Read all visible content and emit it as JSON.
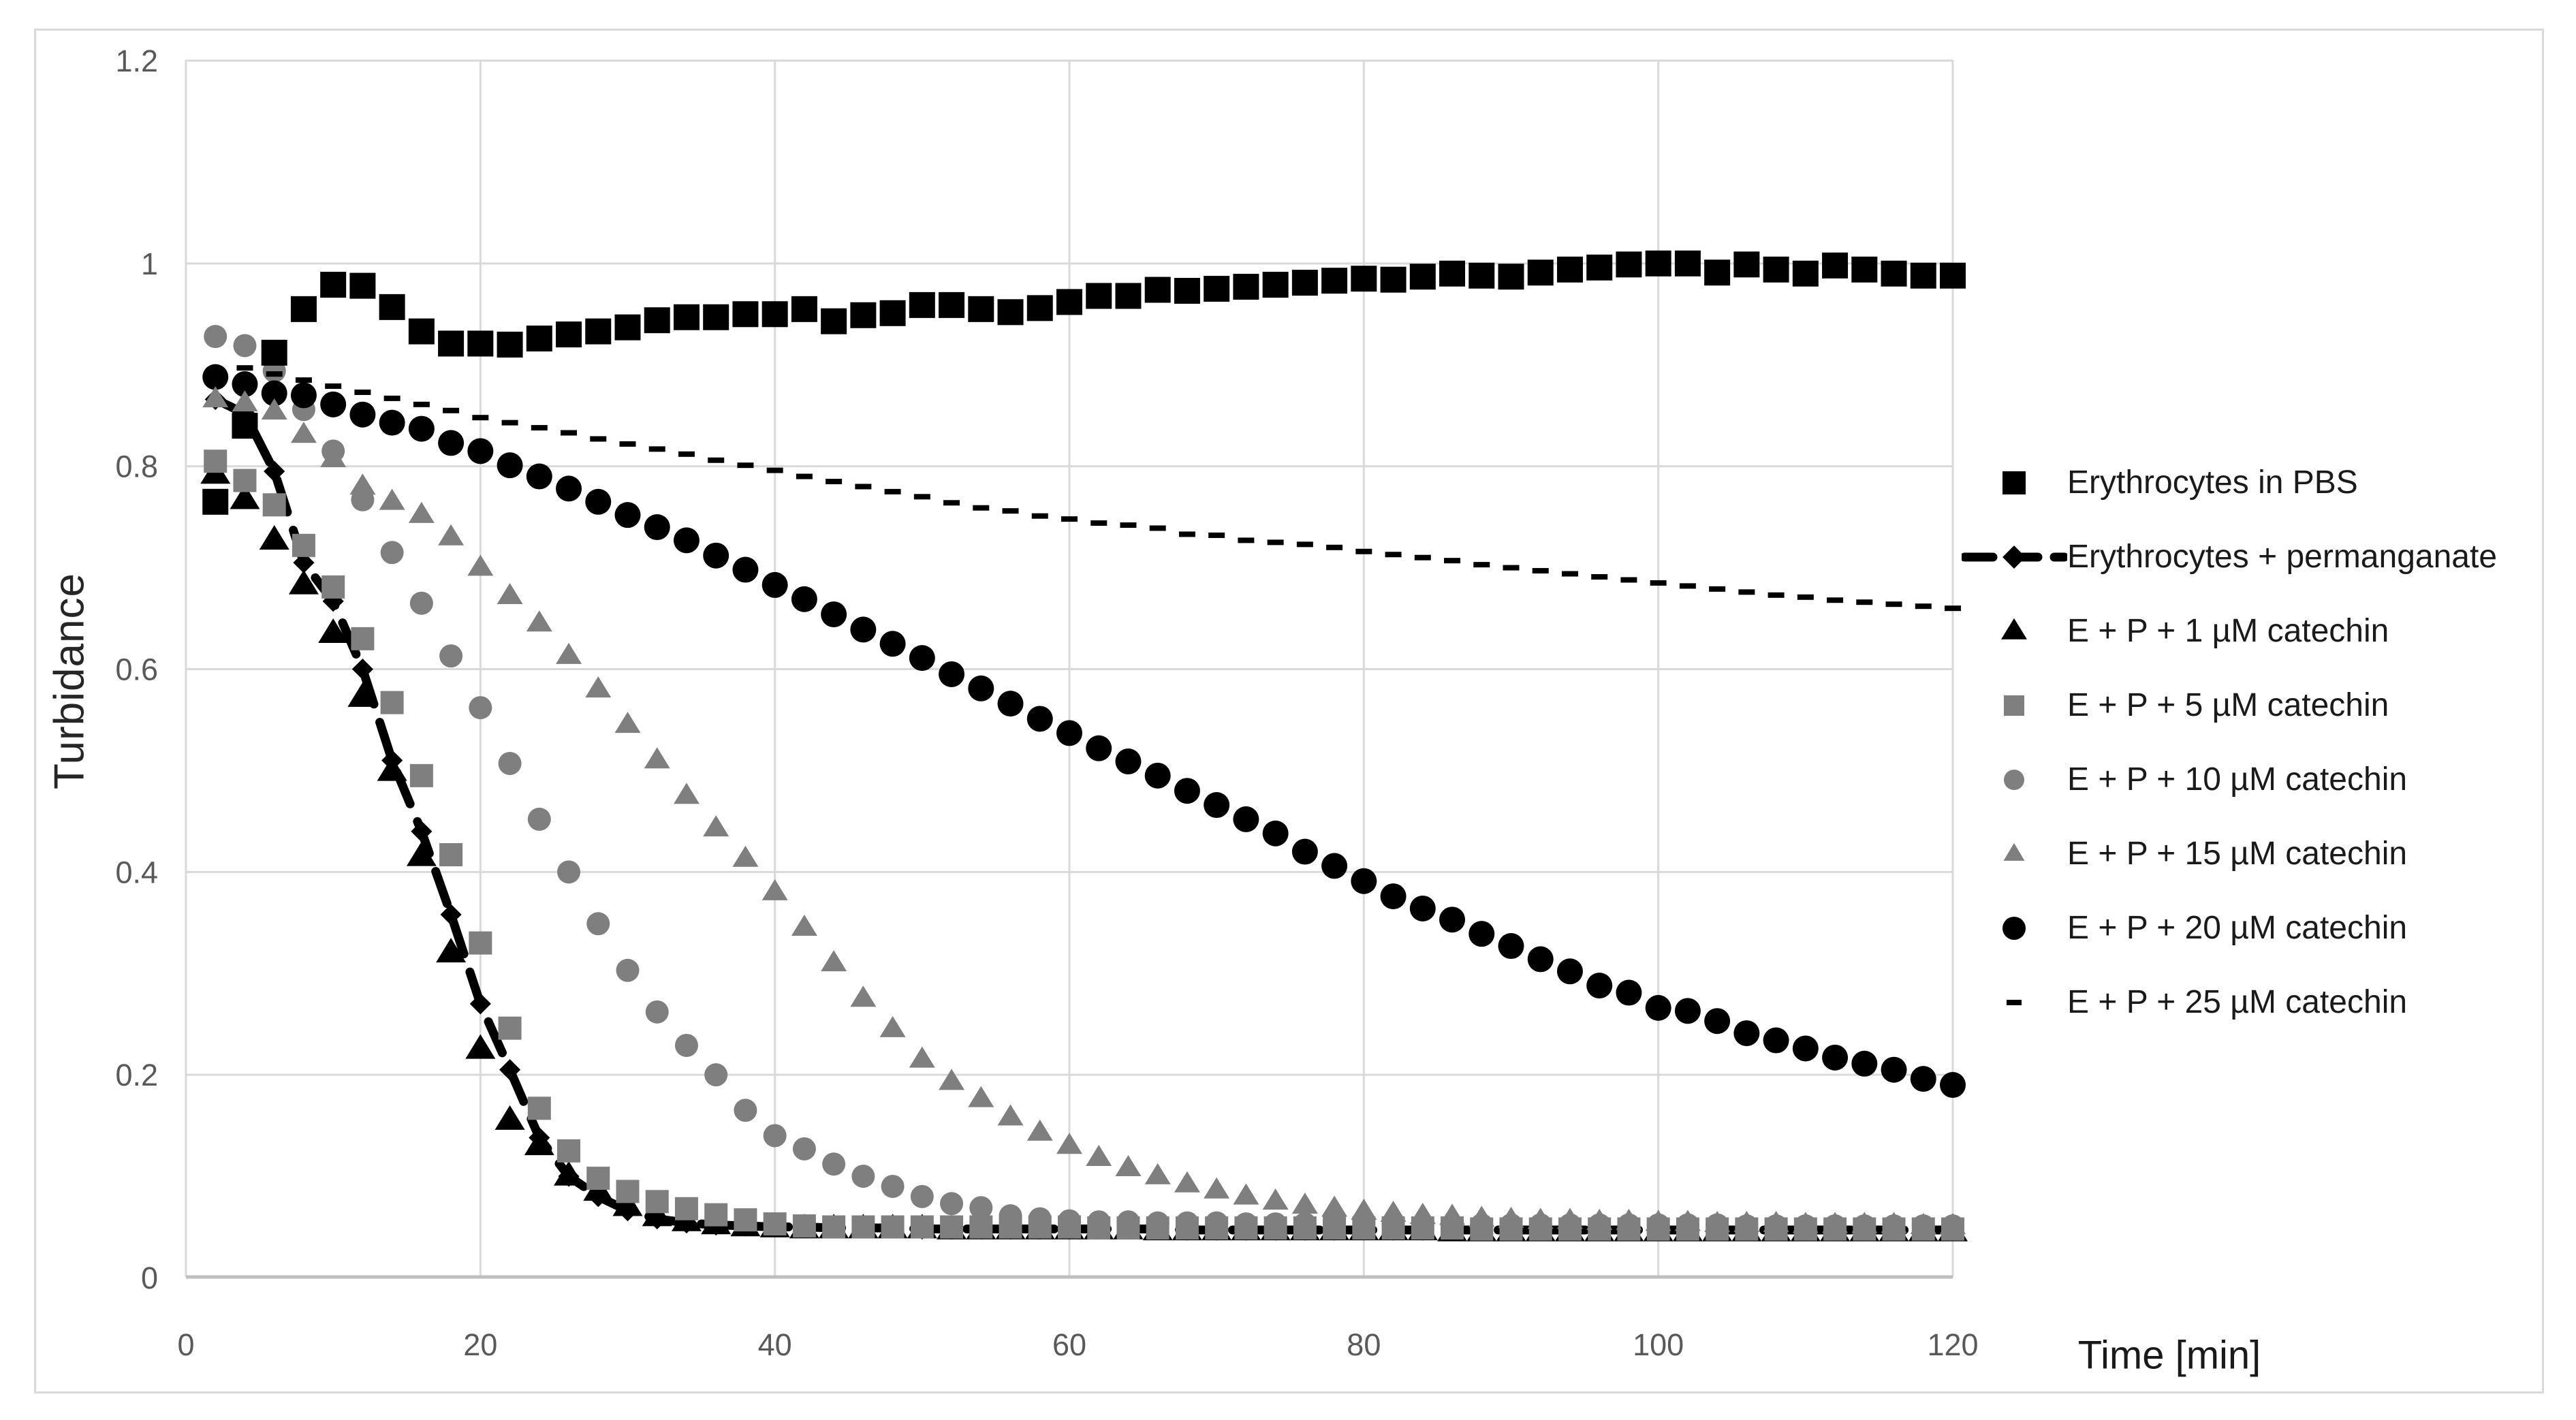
{
  "figure": {
    "background": "#ffffff",
    "border_color": "#d9d9d9",
    "gridline_color": "#d9d9d9",
    "axis_line_color": "#bfbfbf",
    "tick_label_color": "#595959",
    "marker_gray": "#7f7f7f",
    "marker_black": "#000000"
  },
  "chart_data": {
    "type": "scatter",
    "title": "",
    "xlabel": "Time [min]",
    "ylabel": "Turbidance",
    "xlim": [
      0,
      120
    ],
    "ylim": [
      0,
      1.2
    ],
    "grid": true,
    "legend_position": "right",
    "x_ticks": [
      "0",
      "20",
      "40",
      "60",
      "80",
      "100",
      "120"
    ],
    "x_tick_values": [
      0,
      20,
      40,
      60,
      80,
      100,
      120
    ],
    "y_ticks": [
      "0",
      "0.2",
      "0.4",
      "0.6",
      "0.8",
      "1",
      "1.2"
    ],
    "y_tick_values": [
      0,
      0.2,
      0.4,
      0.6,
      0.8,
      1,
      1.2
    ],
    "x": [
      2,
      4,
      6,
      8,
      10,
      12,
      14,
      16,
      18,
      20,
      22,
      24,
      26,
      28,
      30,
      32,
      34,
      36,
      38,
      40,
      42,
      44,
      46,
      48,
      50,
      52,
      54,
      56,
      58,
      60,
      62,
      64,
      66,
      68,
      70,
      72,
      74,
      76,
      78,
      80,
      82,
      84,
      86,
      88,
      90,
      92,
      94,
      96,
      98,
      100,
      102,
      104,
      106,
      108,
      110,
      112,
      114,
      116,
      118,
      120
    ],
    "series": [
      {
        "name": "Erythrocytes in PBS",
        "marker": "square",
        "color": "#000000",
        "values": [
          0.765,
          0.84,
          0.912,
          0.955,
          0.979,
          0.978,
          0.957,
          0.933,
          0.921,
          0.921,
          0.92,
          0.926,
          0.93,
          0.933,
          0.937,
          0.944,
          0.947,
          0.947,
          0.95,
          0.95,
          0.955,
          0.943,
          0.949,
          0.951,
          0.959,
          0.959,
          0.955,
          0.952,
          0.956,
          0.962,
          0.968,
          0.968,
          0.974,
          0.973,
          0.975,
          0.977,
          0.979,
          0.981,
          0.983,
          0.985,
          0.984,
          0.987,
          0.99,
          0.988,
          0.987,
          0.991,
          0.994,
          0.996,
          0.999,
          1.0,
          1.0,
          0.991,
          0.999,
          0.994,
          0.99,
          0.998,
          0.994,
          0.99,
          0.988,
          0.988
        ]
      },
      {
        "name": "Erythrocytes + permanganate",
        "marker": "dash-diamond-line",
        "color": "#000000",
        "values": [
          0.866,
          0.852,
          0.795,
          0.705,
          0.667,
          0.6,
          0.51,
          0.44,
          0.358,
          0.27,
          0.205,
          0.138,
          0.1,
          0.08,
          0.066,
          0.058,
          0.054,
          0.052,
          0.051,
          0.05,
          0.05,
          0.049,
          0.049,
          0.049,
          0.048,
          0.048,
          0.048,
          0.048,
          0.048,
          0.048,
          0.048,
          0.048,
          0.048,
          0.047,
          0.047,
          0.047,
          0.047,
          0.047,
          0.047,
          0.047,
          0.047,
          0.047,
          0.047,
          0.047,
          0.047,
          0.047,
          0.047,
          0.047,
          0.047,
          0.047,
          0.047,
          0.047,
          0.047,
          0.047,
          0.047,
          0.047,
          0.047,
          0.047,
          0.047,
          0.047
        ]
      },
      {
        "name": "E + P + 1 µM catechin",
        "marker": "triangle",
        "color": "#000000",
        "values": [
          0.792,
          0.767,
          0.727,
          0.683,
          0.635,
          0.572,
          0.499,
          0.415,
          0.32,
          0.225,
          0.155,
          0.13,
          0.1,
          0.085,
          0.07,
          0.06,
          0.055,
          0.052,
          0.05,
          0.049,
          0.048,
          0.048,
          0.048,
          0.048,
          0.048,
          0.047,
          0.047,
          0.047,
          0.047,
          0.047,
          0.047,
          0.047,
          0.046,
          0.046,
          0.046,
          0.046,
          0.046,
          0.046,
          0.046,
          0.046,
          0.046,
          0.046,
          0.045,
          0.045,
          0.045,
          0.045,
          0.045,
          0.045,
          0.045,
          0.045,
          0.045,
          0.045,
          0.045,
          0.045,
          0.045,
          0.045,
          0.045,
          0.045,
          0.045,
          0.045
        ]
      },
      {
        "name": "E + P + 5 µM catechin",
        "marker": "square",
        "color": "#7f7f7f",
        "values": [
          0.805,
          0.786,
          0.762,
          0.722,
          0.681,
          0.63,
          0.567,
          0.495,
          0.417,
          0.33,
          0.246,
          0.167,
          0.125,
          0.098,
          0.085,
          0.075,
          0.068,
          0.062,
          0.057,
          0.053,
          0.051,
          0.05,
          0.05,
          0.05,
          0.05,
          0.05,
          0.05,
          0.05,
          0.05,
          0.05,
          0.049,
          0.049,
          0.049,
          0.049,
          0.049,
          0.049,
          0.049,
          0.049,
          0.049,
          0.049,
          0.049,
          0.049,
          0.049,
          0.048,
          0.048,
          0.048,
          0.048,
          0.048,
          0.048,
          0.048,
          0.048,
          0.048,
          0.048,
          0.048,
          0.048,
          0.048,
          0.048,
          0.048,
          0.048,
          0.048
        ]
      },
      {
        "name": "E + P + 10 µM catechin",
        "marker": "circle",
        "color": "#7f7f7f",
        "values": [
          0.928,
          0.919,
          0.894,
          0.856,
          0.815,
          0.767,
          0.715,
          0.665,
          0.613,
          0.562,
          0.507,
          0.452,
          0.4,
          0.349,
          0.303,
          0.262,
          0.229,
          0.2,
          0.165,
          0.14,
          0.127,
          0.112,
          0.1,
          0.09,
          0.08,
          0.073,
          0.069,
          0.061,
          0.058,
          0.056,
          0.055,
          0.055,
          0.054,
          0.054,
          0.054,
          0.053,
          0.053,
          0.053,
          0.053,
          0.053,
          0.053,
          0.052,
          0.052,
          0.052,
          0.052,
          0.052,
          0.052,
          0.052,
          0.052,
          0.052,
          0.052,
          0.052,
          0.051,
          0.051,
          0.051,
          0.051,
          0.051,
          0.051,
          0.051,
          0.051
        ]
      },
      {
        "name": "E + P + 15 µM catechin",
        "marker": "triangle",
        "color": "#7f7f7f",
        "values": [
          0.866,
          0.862,
          0.854,
          0.831,
          0.807,
          0.78,
          0.765,
          0.752,
          0.73,
          0.7,
          0.672,
          0.645,
          0.613,
          0.58,
          0.545,
          0.51,
          0.475,
          0.443,
          0.413,
          0.38,
          0.345,
          0.31,
          0.275,
          0.245,
          0.215,
          0.193,
          0.176,
          0.158,
          0.143,
          0.13,
          0.118,
          0.108,
          0.1,
          0.092,
          0.086,
          0.08,
          0.075,
          0.071,
          0.068,
          0.065,
          0.063,
          0.061,
          0.06,
          0.058,
          0.057,
          0.056,
          0.056,
          0.055,
          0.055,
          0.054,
          0.054,
          0.053,
          0.053,
          0.053,
          0.052,
          0.052,
          0.052,
          0.052,
          0.051,
          0.051
        ]
      },
      {
        "name": "E + P + 20 µM catechin",
        "marker": "circle",
        "color": "#000000",
        "values": [
          0.888,
          0.881,
          0.872,
          0.87,
          0.861,
          0.851,
          0.843,
          0.837,
          0.823,
          0.815,
          0.801,
          0.79,
          0.778,
          0.765,
          0.752,
          0.74,
          0.727,
          0.712,
          0.698,
          0.683,
          0.669,
          0.654,
          0.639,
          0.625,
          0.611,
          0.595,
          0.581,
          0.566,
          0.551,
          0.537,
          0.522,
          0.509,
          0.495,
          0.48,
          0.466,
          0.452,
          0.438,
          0.42,
          0.406,
          0.391,
          0.376,
          0.364,
          0.353,
          0.339,
          0.327,
          0.314,
          0.302,
          0.288,
          0.281,
          0.266,
          0.263,
          0.253,
          0.241,
          0.234,
          0.226,
          0.217,
          0.211,
          0.205,
          0.196,
          0.19
        ]
      },
      {
        "name": "E + P + 25 µM catechin",
        "marker": "dash",
        "color": "#000000",
        "values": [
          null,
          0.897,
          0.891,
          0.885,
          0.879,
          0.873,
          0.867,
          0.861,
          0.855,
          0.848,
          0.843,
          0.838,
          0.833,
          0.827,
          0.822,
          0.817,
          0.812,
          0.806,
          0.801,
          0.796,
          0.79,
          0.785,
          0.78,
          0.775,
          0.77,
          0.764,
          0.759,
          0.756,
          0.751,
          0.748,
          0.744,
          0.742,
          0.739,
          0.733,
          0.732,
          0.727,
          0.725,
          0.723,
          0.72,
          0.716,
          0.713,
          0.71,
          0.707,
          0.703,
          0.7,
          0.697,
          0.694,
          0.691,
          0.688,
          0.685,
          0.682,
          0.679,
          0.676,
          0.673,
          0.671,
          0.668,
          0.666,
          0.664,
          0.662,
          0.66
        ]
      }
    ]
  }
}
